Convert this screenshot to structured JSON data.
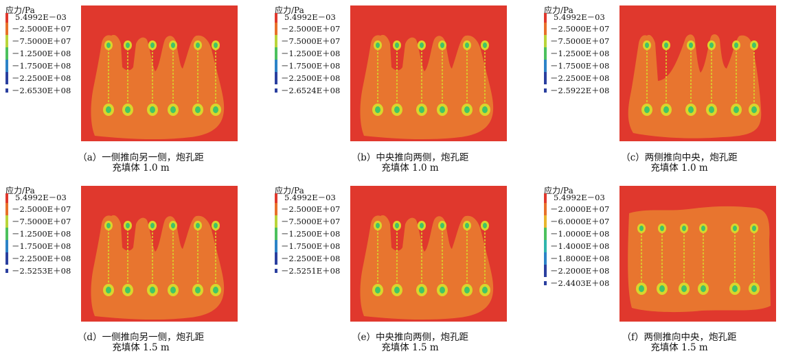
{
  "panels": [
    {
      "legend_title": "应力/Pa",
      "legend_values": [
        "5.4992E－03",
        "－2.5000E＋07",
        "－7.5000E＋07",
        "－1.2500E＋08",
        "－1.7500E＋08",
        "－2.2500E＋08",
        "－2.6530E＋08"
      ],
      "caption_line1": "（a）一侧推向另一侧，炮孔距",
      "caption_line2": "充填体 1.0 m"
    },
    {
      "legend_title": "应力/Pa",
      "legend_values": [
        "5.4992E－03",
        "－2.5000E＋07",
        "－7.5000E＋07",
        "－1.2500E＋08",
        "－1.7500E＋08",
        "－2.2500E＋08",
        "－2.6524E＋08"
      ],
      "caption_line1": "（b）中央推向两侧，炮孔距",
      "caption_line2": "充填体 1.0 m"
    },
    {
      "legend_title": "应力/Pa",
      "legend_values": [
        "5.4992E－03",
        "－2.5000E＋07",
        "－7.5000E＋07",
        "－1.2500E＋08",
        "－1.7500E＋08",
        "－2.2500E＋08",
        "－2.5922E＋08"
      ],
      "caption_line1": "（c）两侧推向中央，炮孔距",
      "caption_line2": "充填体 1.0 m"
    },
    {
      "legend_title": "应力/Pa",
      "legend_values": [
        "5.4992E－03",
        "－2.5000E＋07",
        "－7.5000E＋07",
        "－1.2500E＋08",
        "－1.7500E＋08",
        "－2.2500E＋08",
        "－2.5253E＋08"
      ],
      "caption_line1": "（d）一侧推向另一侧，炮孔距",
      "caption_line2": "充填体 1.5 m"
    },
    {
      "legend_title": "应力/Pa",
      "legend_values": [
        "5.4992E－03",
        "－2.5000E＋07",
        "－7.5000E＋07",
        "－1.2500E＋08",
        "－1.7500E＋08",
        "－2.2500E＋08",
        "－2.5251E＋08"
      ],
      "caption_line1": "（e）中央推向两侧，炮孔距",
      "caption_line2": "充填体 1.5 m"
    },
    {
      "legend_title": "应力/Pa",
      "legend_values": [
        "5.4992E－03",
        "－2.0000E＋07",
        "－6.0000E＋07",
        "－1.0000E＋08",
        "－1.4000E＋08",
        "－1.8000E＋08",
        "－2.2000E＋08",
        "－2.4403E＋08"
      ],
      "caption_line1": "（f）两侧推向中央，炮孔距",
      "caption_line2": "充填体 1.5 m"
    }
  ],
  "colors": {
    "background_stress": "#e0382d",
    "compressed_zone": "#e8752f",
    "hole_yellow": "#d8d62c",
    "hole_green": "#3fc46a",
    "scale": [
      "#e0382d",
      "#e8712a",
      "#e8b52d",
      "#b9d53a",
      "#4cc15d",
      "#2fb5ad",
      "#2c83c7",
      "#2a3f9f"
    ]
  }
}
